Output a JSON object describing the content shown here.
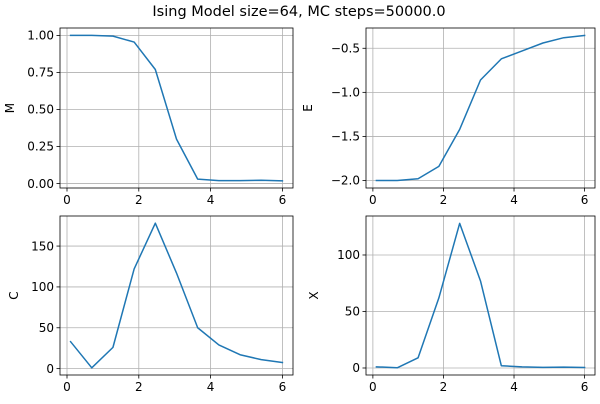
{
  "figure": {
    "title": "Ising Model size=64, MC steps=50000.0"
  },
  "chart_data": [
    {
      "type": "line",
      "title": "",
      "xlabel": "",
      "ylabel": "M",
      "grid": true,
      "series_color": "#1f77b4",
      "x": [
        0.1,
        0.69,
        1.28,
        1.87,
        2.46,
        3.05,
        3.64,
        4.23,
        4.82,
        5.41,
        6.0
      ],
      "y": [
        1.0,
        1.0,
        0.995,
        0.955,
        0.77,
        0.3,
        0.03,
        0.02,
        0.02,
        0.022,
        0.018
      ],
      "xlim": [
        -0.195,
        6.295
      ],
      "ylim": [
        -0.03,
        1.05
      ],
      "xticks": [
        0,
        2,
        4,
        6
      ],
      "xtick_labels": [
        "0",
        "2",
        "4",
        "6"
      ],
      "yticks": [
        0.0,
        0.25,
        0.5,
        0.75,
        1.0
      ],
      "ytick_labels": [
        "0.00",
        "0.25",
        "0.50",
        "0.75",
        "1.00"
      ]
    },
    {
      "type": "line",
      "title": "",
      "xlabel": "",
      "ylabel": "E",
      "grid": true,
      "series_color": "#1f77b4",
      "x": [
        0.1,
        0.69,
        1.28,
        1.87,
        2.46,
        3.05,
        3.64,
        4.23,
        4.82,
        5.41,
        6.0
      ],
      "y": [
        -2.0,
        -2.0,
        -1.98,
        -1.84,
        -1.42,
        -0.86,
        -0.62,
        -0.53,
        -0.44,
        -0.38,
        -0.355
      ],
      "xlim": [
        -0.195,
        6.295
      ],
      "ylim": [
        -2.085,
        -0.27
      ],
      "xticks": [
        0,
        2,
        4,
        6
      ],
      "xtick_labels": [
        "0",
        "2",
        "4",
        "6"
      ],
      "yticks": [
        -2.0,
        -1.5,
        -1.0,
        -0.5
      ],
      "ytick_labels": [
        "−2.0",
        "−1.5",
        "−1.0",
        "−0.5"
      ]
    },
    {
      "type": "line",
      "title": "",
      "xlabel": "",
      "ylabel": "C",
      "grid": true,
      "series_color": "#1f77b4",
      "x": [
        0.1,
        0.69,
        1.28,
        1.87,
        2.46,
        3.05,
        3.64,
        4.23,
        4.82,
        5.41,
        6.0
      ],
      "y": [
        33,
        1,
        26,
        122,
        178,
        117,
        50,
        29,
        17,
        11,
        7.5
      ],
      "xlim": [
        -0.195,
        6.295
      ],
      "ylim": [
        -7.8,
        186.8
      ],
      "xticks": [
        0,
        2,
        4,
        6
      ],
      "xtick_labels": [
        "0",
        "2",
        "4",
        "6"
      ],
      "yticks": [
        0,
        50,
        100,
        150
      ],
      "ytick_labels": [
        "0",
        "50",
        "100",
        "150"
      ]
    },
    {
      "type": "line",
      "title": "",
      "xlabel": "",
      "ylabel": "X",
      "grid": true,
      "series_color": "#1f77b4",
      "x": [
        0.1,
        0.69,
        1.28,
        1.87,
        2.46,
        3.05,
        3.64,
        4.23,
        4.82,
        5.41,
        6.0
      ],
      "y": [
        1.0,
        0.2,
        9,
        62,
        128,
        77,
        2,
        1.0,
        0.6,
        0.8,
        0.5
      ],
      "xlim": [
        -0.195,
        6.295
      ],
      "ylim": [
        -6.2,
        134.5
      ],
      "xticks": [
        0,
        2,
        4,
        6
      ],
      "xtick_labels": [
        "0",
        "2",
        "4",
        "6"
      ],
      "yticks": [
        0,
        50,
        100
      ],
      "ytick_labels": [
        "0",
        "50",
        "100"
      ]
    }
  ]
}
